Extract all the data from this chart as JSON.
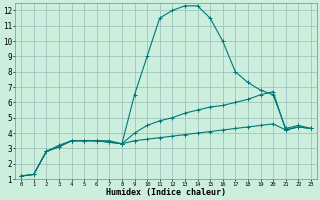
{
  "xlabel": "Humidex (Indice chaleur)",
  "background_color": "#cceedd",
  "grid_color": "#99bbbb",
  "line_color": "#007777",
  "xlim": [
    -0.5,
    23.5
  ],
  "ylim": [
    1,
    12.5
  ],
  "xticks": [
    0,
    1,
    2,
    3,
    4,
    5,
    6,
    7,
    8,
    9,
    10,
    11,
    12,
    13,
    14,
    15,
    16,
    17,
    18,
    19,
    20,
    21,
    22,
    23
  ],
  "yticks": [
    1,
    2,
    3,
    4,
    5,
    6,
    7,
    8,
    9,
    10,
    11,
    12
  ],
  "series": [
    {
      "x": [
        0,
        1,
        2,
        3,
        4,
        5,
        6,
        7,
        8,
        9,
        10,
        11,
        12,
        13,
        14,
        15,
        16,
        17,
        18,
        19,
        20,
        21,
        22,
        23
      ],
      "y": [
        1.2,
        1.3,
        2.8,
        3.2,
        3.5,
        3.5,
        3.5,
        3.5,
        3.3,
        6.5,
        9.0,
        11.5,
        12.0,
        12.3,
        12.3,
        11.5,
        10.0,
        8.0,
        7.3,
        6.8,
        6.5,
        4.3,
        4.5,
        4.3
      ]
    },
    {
      "x": [
        0,
        1,
        2,
        3,
        4,
        5,
        6,
        7,
        8,
        9,
        10,
        11,
        12,
        13,
        14,
        15,
        16,
        17,
        18,
        19,
        20,
        21,
        22,
        23
      ],
      "y": [
        1.2,
        1.3,
        2.8,
        3.1,
        3.5,
        3.5,
        3.5,
        3.4,
        3.3,
        4.0,
        4.5,
        4.8,
        5.0,
        5.3,
        5.5,
        5.7,
        5.8,
        6.0,
        6.2,
        6.5,
        6.7,
        4.2,
        4.4,
        4.3
      ]
    },
    {
      "x": [
        0,
        1,
        2,
        3,
        4,
        5,
        6,
        7,
        8,
        9,
        10,
        11,
        12,
        13,
        14,
        15,
        16,
        17,
        18,
        19,
        20,
        21,
        22,
        23
      ],
      "y": [
        1.2,
        1.3,
        2.8,
        3.1,
        3.5,
        3.5,
        3.5,
        3.4,
        3.3,
        3.5,
        3.6,
        3.7,
        3.8,
        3.9,
        4.0,
        4.1,
        4.2,
        4.3,
        4.4,
        4.5,
        4.6,
        4.2,
        4.4,
        4.3
      ]
    }
  ]
}
